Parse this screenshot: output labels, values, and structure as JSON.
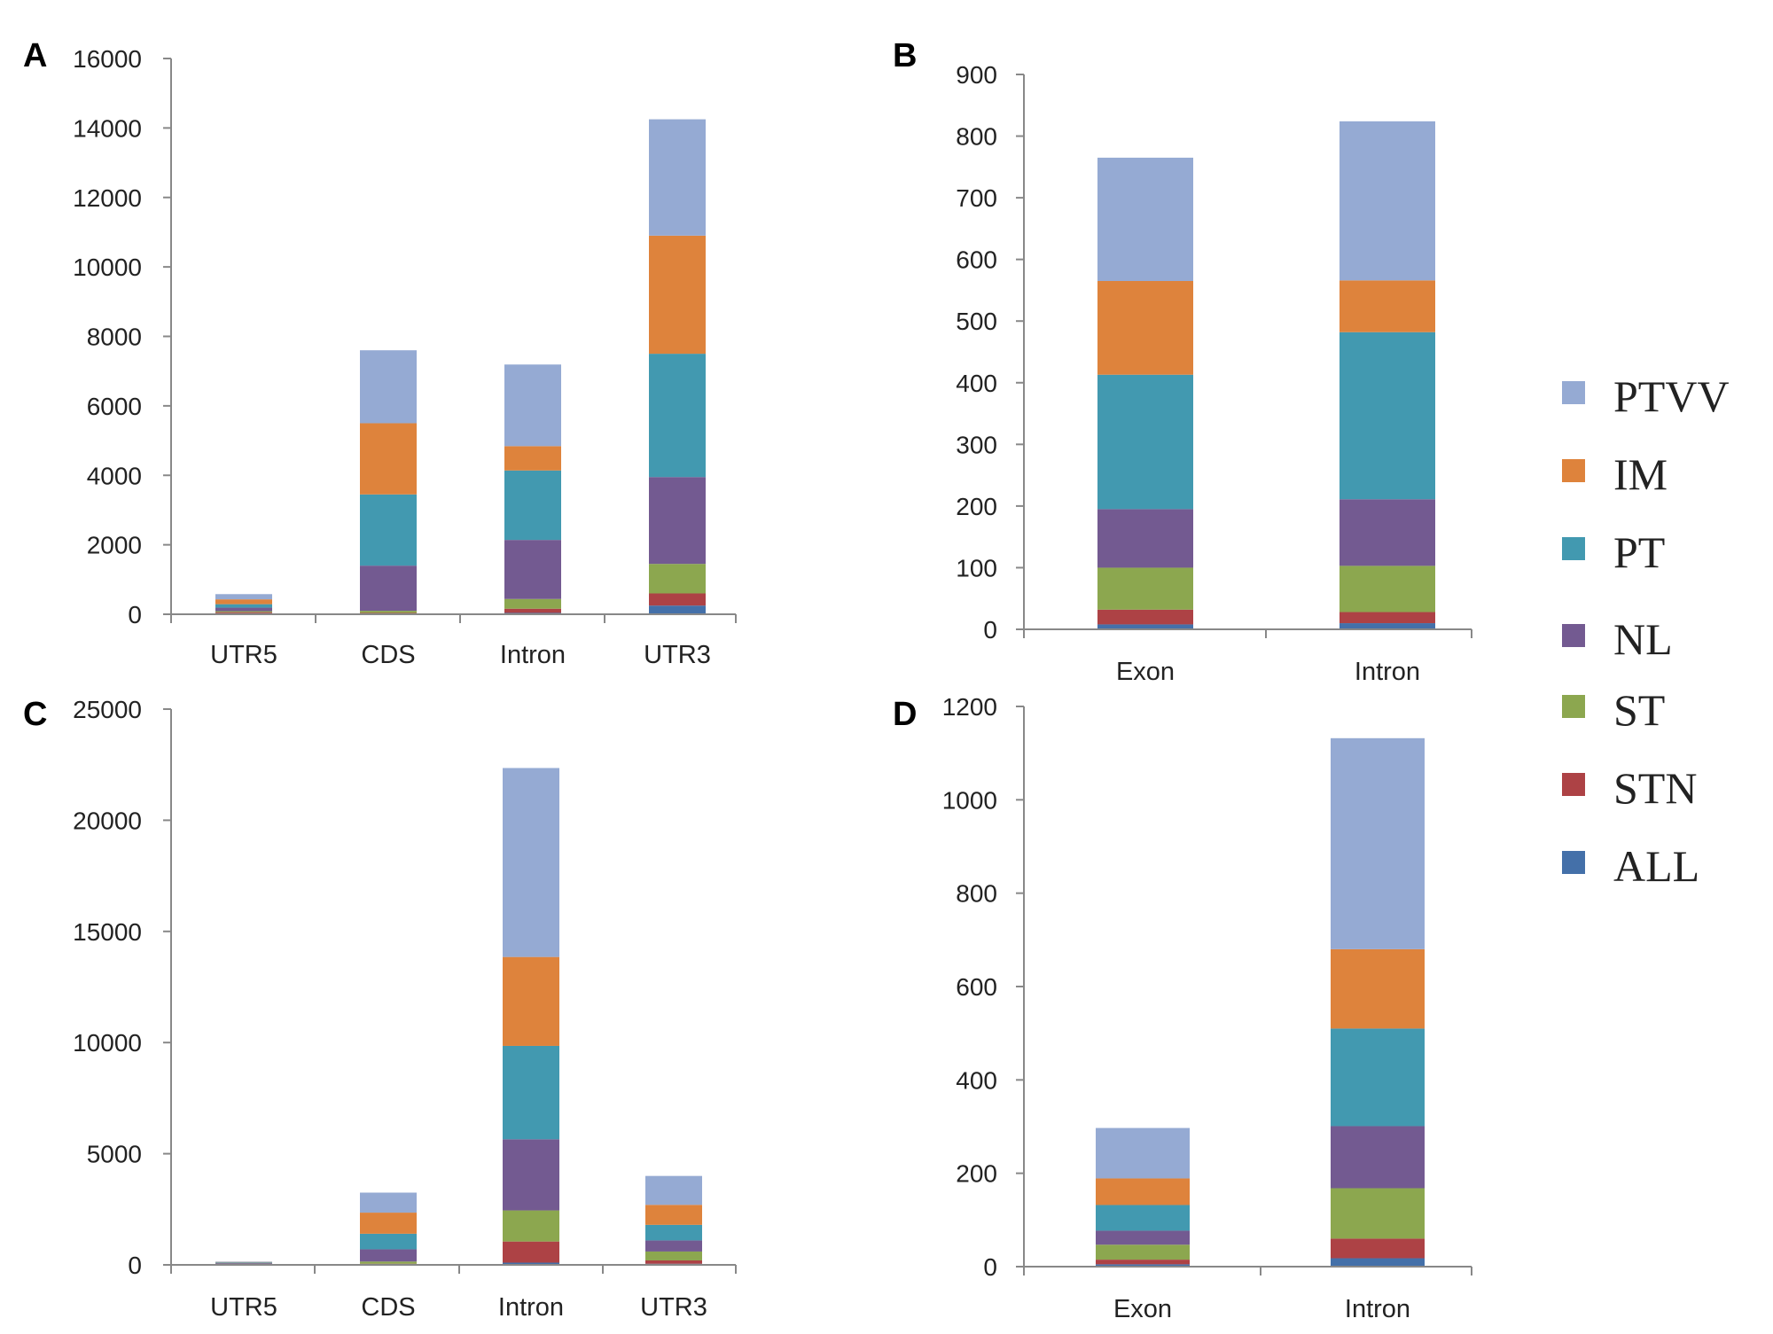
{
  "legend": {
    "items": [
      {
        "name": "PTVV",
        "color": "#95aad3"
      },
      {
        "name": "IM",
        "color": "#de833c"
      },
      {
        "name": "PT",
        "color": "#4299b0"
      },
      {
        "name": "NL",
        "color": "#735a91"
      },
      {
        "name": "ST",
        "color": "#8ca74f"
      },
      {
        "name": "STN",
        "color": "#ad4245"
      },
      {
        "name": "ALL",
        "color": "#4470a9"
      }
    ]
  },
  "chart_data": [
    {
      "panel": "A",
      "type": "bar",
      "stacked": true,
      "categories": [
        "UTR5",
        "CDS",
        "Intron",
        "UTR3"
      ],
      "ylim": [
        0,
        16000
      ],
      "yticks": [
        0,
        2000,
        4000,
        6000,
        8000,
        10000,
        12000,
        14000,
        16000
      ],
      "series": [
        {
          "name": "ALL",
          "values": [
            30,
            20,
            40,
            250
          ]
        },
        {
          "name": "STN",
          "values": [
            30,
            20,
            120,
            350
          ]
        },
        {
          "name": "ST",
          "values": [
            30,
            60,
            280,
            850
          ]
        },
        {
          "name": "NL",
          "values": [
            100,
            1300,
            1700,
            2500
          ]
        },
        {
          "name": "PT",
          "values": [
            100,
            2050,
            2000,
            3550
          ]
        },
        {
          "name": "IM",
          "values": [
            140,
            2050,
            700,
            3400
          ]
        },
        {
          "name": "PTVV",
          "values": [
            150,
            2100,
            2350,
            3350
          ]
        }
      ]
    },
    {
      "panel": "B",
      "type": "bar",
      "stacked": true,
      "categories": [
        "Exon",
        "Intron"
      ],
      "ylim": [
        0,
        900
      ],
      "yticks": [
        0,
        100,
        200,
        300,
        400,
        500,
        600,
        700,
        800,
        900
      ],
      "series": [
        {
          "name": "ALL",
          "values": [
            8,
            10
          ]
        },
        {
          "name": "STN",
          "values": [
            24,
            18
          ]
        },
        {
          "name": "ST",
          "values": [
            68,
            75
          ]
        },
        {
          "name": "NL",
          "values": [
            95,
            108
          ]
        },
        {
          "name": "PT",
          "values": [
            218,
            271
          ]
        },
        {
          "name": "IM",
          "values": [
            152,
            84
          ]
        },
        {
          "name": "PTVV",
          "values": [
            200,
            258
          ]
        }
      ]
    },
    {
      "panel": "C",
      "type": "bar",
      "stacked": true,
      "categories": [
        "UTR5",
        "CDS",
        "Intron",
        "UTR3"
      ],
      "ylim": [
        0,
        25000
      ],
      "yticks": [
        0,
        5000,
        10000,
        15000,
        20000,
        25000
      ],
      "series": [
        {
          "name": "ALL",
          "values": [
            10,
            20,
            100,
            50
          ]
        },
        {
          "name": "STN",
          "values": [
            10,
            30,
            950,
            150
          ]
        },
        {
          "name": "ST",
          "values": [
            30,
            100,
            1400,
            400
          ]
        },
        {
          "name": "NL",
          "values": [
            30,
            550,
            3200,
            500
          ]
        },
        {
          "name": "PT",
          "values": [
            30,
            700,
            4200,
            700
          ]
        },
        {
          "name": "IM",
          "values": [
            20,
            950,
            4000,
            900
          ]
        },
        {
          "name": "PTVV",
          "values": [
            20,
            900,
            8500,
            1300
          ]
        }
      ]
    },
    {
      "panel": "D",
      "type": "bar",
      "stacked": true,
      "categories": [
        "Exon",
        "Intron"
      ],
      "ylim": [
        0,
        1200
      ],
      "yticks": [
        0,
        200,
        400,
        600,
        800,
        1000,
        1200
      ],
      "series": [
        {
          "name": "ALL",
          "values": [
            5,
            18
          ]
        },
        {
          "name": "STN",
          "values": [
            10,
            42
          ]
        },
        {
          "name": "ST",
          "values": [
            32,
            108
          ]
        },
        {
          "name": "NL",
          "values": [
            30,
            133
          ]
        },
        {
          "name": "PT",
          "values": [
            55,
            209
          ]
        },
        {
          "name": "IM",
          "values": [
            57,
            170
          ]
        },
        {
          "name": "PTVV",
          "values": [
            108,
            452
          ]
        }
      ]
    }
  ]
}
